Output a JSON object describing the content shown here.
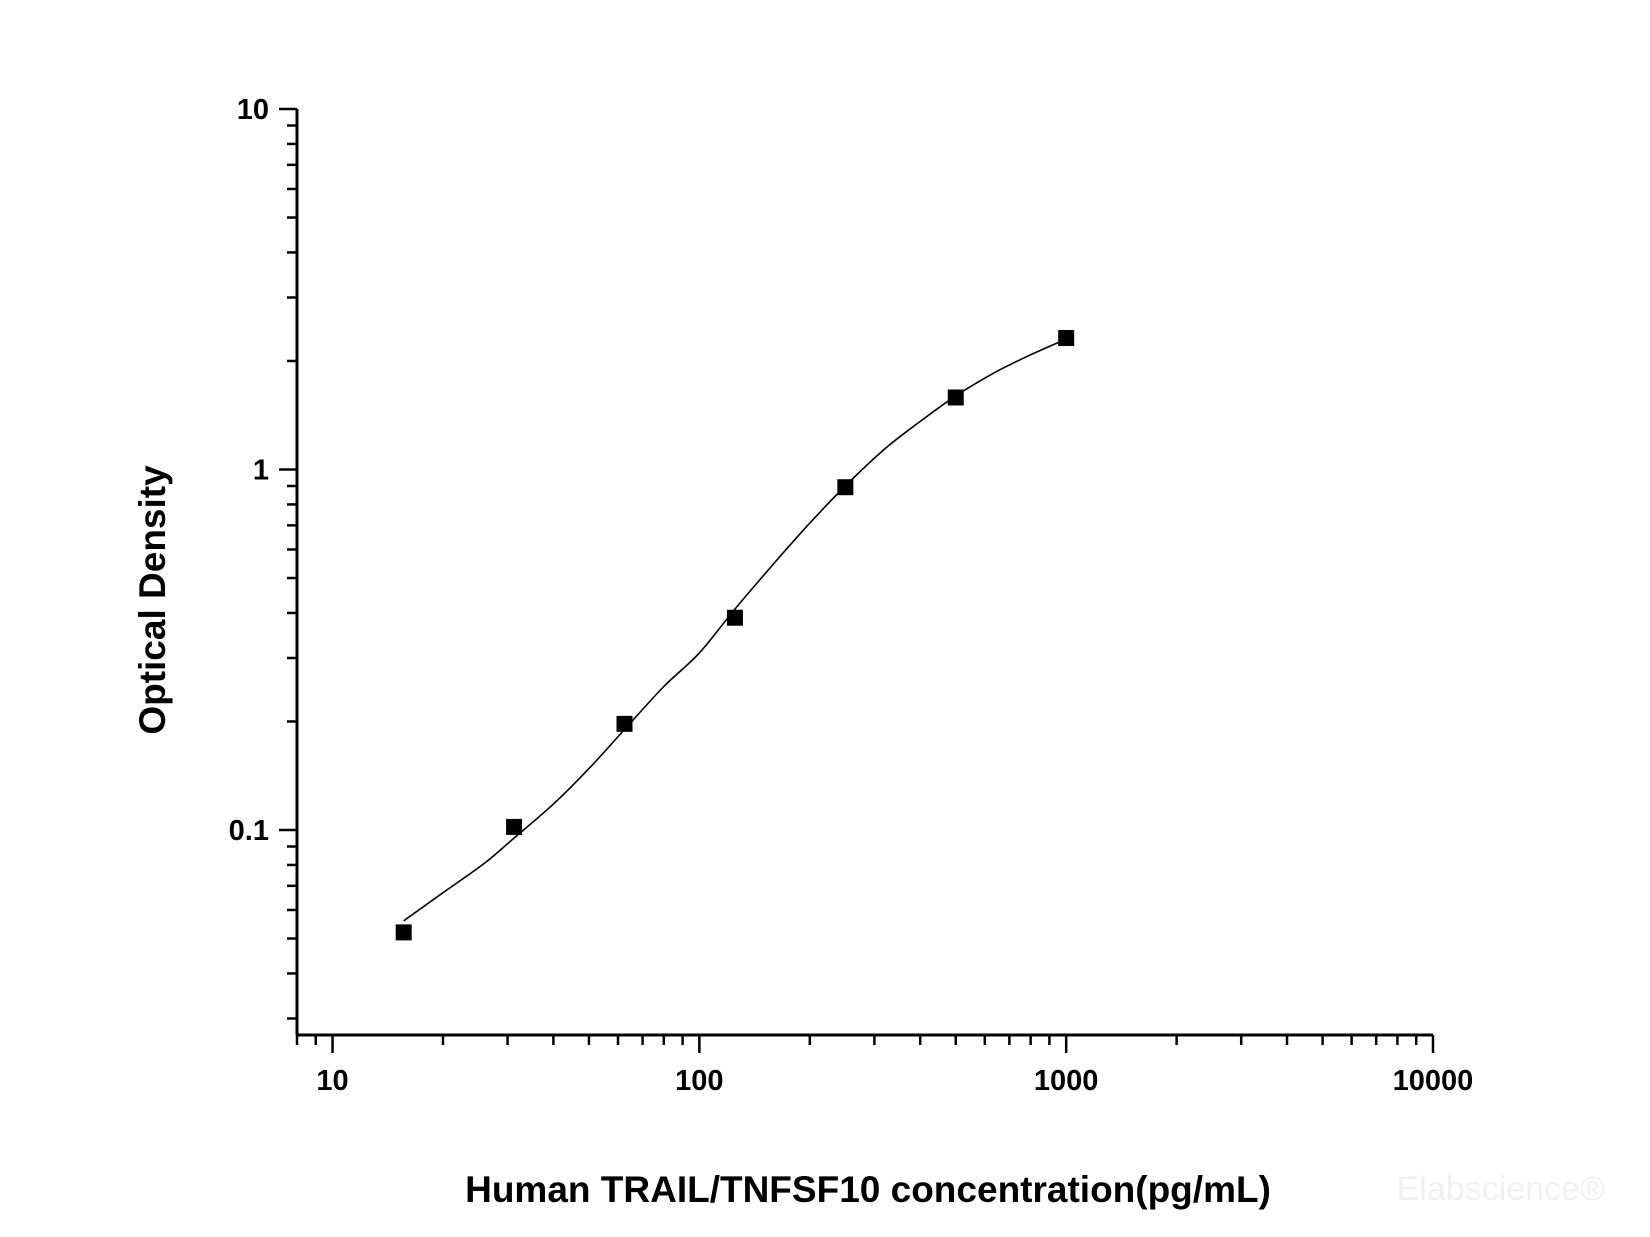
{
  "chart_data": {
    "type": "scatter",
    "xlabel": "Human TRAIL/TNFSF10 concentration(pg/mL)",
    "ylabel": "Optical Density",
    "x_scale": "log",
    "y_scale": "log",
    "xlim": [
      8,
      10000
    ],
    "ylim": [
      0.027,
      10
    ],
    "x_ticks": [
      "10",
      "100",
      "1000",
      "10000"
    ],
    "y_ticks": [
      "0.1",
      "1",
      "10"
    ],
    "grid": false,
    "legend": "none",
    "series": [
      {
        "x": [
          15.63,
          31.25,
          62.5,
          125,
          250,
          500,
          1000
        ],
        "y": [
          0.052,
          0.102,
          0.197,
          0.388,
          0.893,
          1.584,
          2.316
        ],
        "marker": "square",
        "color": "#000000"
      }
    ],
    "fit_curve": {
      "x": [
        15.63,
        20,
        26,
        31.25,
        40,
        50,
        62.5,
        80,
        100,
        125,
        160,
        200,
        250,
        320,
        400,
        500,
        640,
        800,
        1000
      ],
      "y": [
        0.056,
        0.067,
        0.081,
        0.095,
        0.118,
        0.148,
        0.19,
        0.25,
        0.31,
        0.41,
        0.55,
        0.71,
        0.9,
        1.14,
        1.36,
        1.6,
        1.86,
        2.08,
        2.3
      ],
      "color": "#000000"
    },
    "watermark": "Elabscience®"
  }
}
